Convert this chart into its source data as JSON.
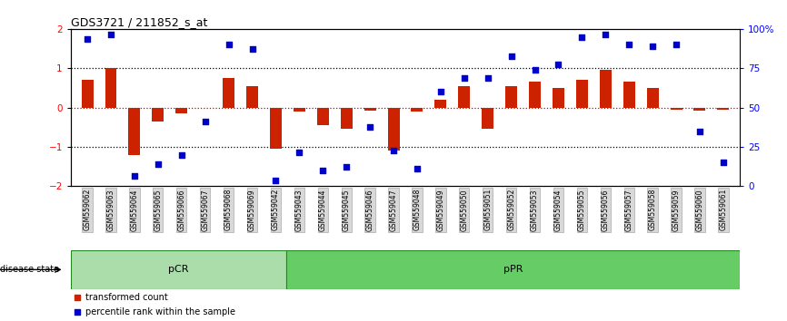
{
  "title": "GDS3721 / 211852_s_at",
  "samples": [
    "GSM559062",
    "GSM559063",
    "GSM559064",
    "GSM559065",
    "GSM559066",
    "GSM559067",
    "GSM559068",
    "GSM559069",
    "GSM559042",
    "GSM559043",
    "GSM559044",
    "GSM559045",
    "GSM559046",
    "GSM559047",
    "GSM559048",
    "GSM559049",
    "GSM559050",
    "GSM559051",
    "GSM559052",
    "GSM559053",
    "GSM559054",
    "GSM559055",
    "GSM559056",
    "GSM559057",
    "GSM559058",
    "GSM559059",
    "GSM559060",
    "GSM559061"
  ],
  "bar_values": [
    0.7,
    1.0,
    -1.2,
    -0.35,
    -0.15,
    0.0,
    0.75,
    0.55,
    -1.05,
    -0.1,
    -0.45,
    -0.55,
    -0.08,
    -1.1,
    -0.1,
    0.2,
    0.55,
    -0.55,
    0.55,
    0.65,
    0.5,
    0.7,
    0.95,
    0.65,
    0.5,
    -0.05,
    -0.08,
    -0.05
  ],
  "dot_values": [
    1.75,
    1.85,
    -1.75,
    -1.45,
    -1.2,
    -0.35,
    1.6,
    1.5,
    -1.85,
    -1.15,
    -1.6,
    -1.5,
    -0.5,
    -1.1,
    -1.55,
    0.4,
    0.75,
    0.75,
    1.3,
    0.95,
    1.1,
    1.8,
    1.85,
    1.6,
    1.55,
    1.6,
    -0.6,
    -1.4
  ],
  "pcr_count": 9,
  "ppr_count": 19,
  "bar_color": "#cc2200",
  "dot_color": "#0000cc",
  "ylim": [
    -2.0,
    2.0
  ],
  "yticks": [
    -2,
    -1,
    0,
    1,
    2
  ],
  "right_yticks": [
    0,
    25,
    50,
    75,
    100
  ],
  "right_yticklabels": [
    "0",
    "25",
    "50",
    "75",
    "100%"
  ],
  "hline_color": "#cc0000",
  "dotted_color": "black",
  "pcr_color": "#aaddaa",
  "ppr_color": "#66cc66",
  "pcr_edge": "#228822",
  "ppr_edge": "#228822",
  "label_bar": "transformed count",
  "label_dot": "percentile rank within the sample",
  "disease_state_label": "disease state"
}
